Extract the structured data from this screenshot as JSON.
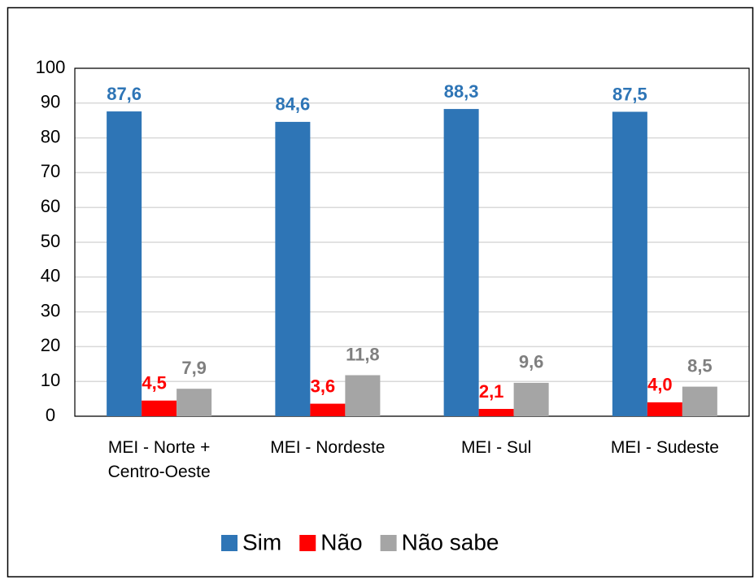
{
  "chart_data": {
    "type": "bar",
    "categories": [
      "MEI - Norte + Centro-Oeste",
      "MEI - Nordeste",
      "MEI - Sul",
      "MEI - Sudeste"
    ],
    "series": [
      {
        "name": "Sim",
        "color": "#2e75b6",
        "values": [
          87.6,
          84.6,
          88.3,
          87.5
        ],
        "value_labels": [
          "87,6",
          "84,6",
          "88,3",
          "87,5"
        ]
      },
      {
        "name": "Não",
        "color": "#ff0000",
        "values": [
          4.5,
          3.6,
          2.1,
          4.0
        ],
        "value_labels": [
          "4,5",
          "3,6",
          "2,1",
          "4,0"
        ]
      },
      {
        "name": "Não sabe",
        "color": "#a5a5a5",
        "values": [
          7.9,
          11.8,
          9.6,
          8.5
        ],
        "value_labels": [
          "7,9",
          "11,8",
          "9,6",
          "8,5"
        ]
      }
    ],
    "ylim": [
      0,
      100
    ],
    "yticks": [
      0,
      10,
      20,
      30,
      40,
      50,
      60,
      70,
      80,
      90,
      100
    ],
    "grid": true,
    "legend": "bottom"
  }
}
